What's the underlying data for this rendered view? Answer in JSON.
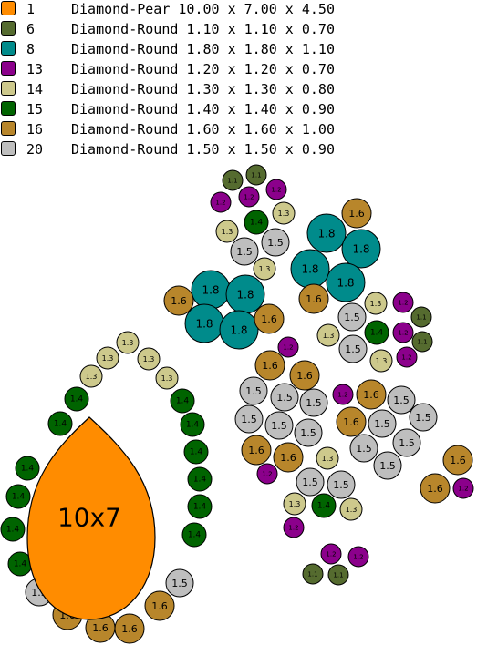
{
  "legend": [
    {
      "num": "1",
      "desc": "Diamond-Pear 10.00 x 7.00 x 4.50",
      "color": "#ff8c00"
    },
    {
      "num": "6",
      "desc": "Diamond-Round 1.10 x 1.10 x 0.70",
      "color": "#556b2f"
    },
    {
      "num": "8",
      "desc": "Diamond-Round 1.80 x 1.80 x 1.10",
      "color": "#008b8b"
    },
    {
      "num": "13",
      "desc": "Diamond-Round 1.20 x 1.20 x 0.70",
      "color": "#8b008b"
    },
    {
      "num": "14",
      "desc": "Diamond-Round 1.30 x 1.30 x 0.80",
      "color": "#cdc98c"
    },
    {
      "num": "15",
      "desc": "Diamond-Round 1.40 x 1.40 x 0.90",
      "color": "#006400"
    },
    {
      "num": "16",
      "desc": "Diamond-Round 1.60 x 1.60 x 1.00",
      "color": "#b8862b"
    },
    {
      "num": "20",
      "desc": "Diamond-Round 1.50 x 1.50 x 0.90",
      "color": "#bebebe"
    }
  ],
  "pear_label": "10x7",
  "gem_types": {
    "1.1": {
      "color": "#556b2f",
      "label": "1.1"
    },
    "1.2": {
      "color": "#8b008b",
      "label": "1.2"
    },
    "1.3": {
      "color": "#cdc98c",
      "label": "1.3"
    },
    "1.4": {
      "color": "#006400",
      "label": "1.4"
    },
    "1.5": {
      "color": "#bebebe",
      "label": "1.5"
    },
    "1.6": {
      "color": "#b8862b",
      "label": "1.6"
    },
    "1.8": {
      "color": "#008b8b",
      "label": "1.8"
    }
  },
  "pear_color": "#ff8c00"
}
